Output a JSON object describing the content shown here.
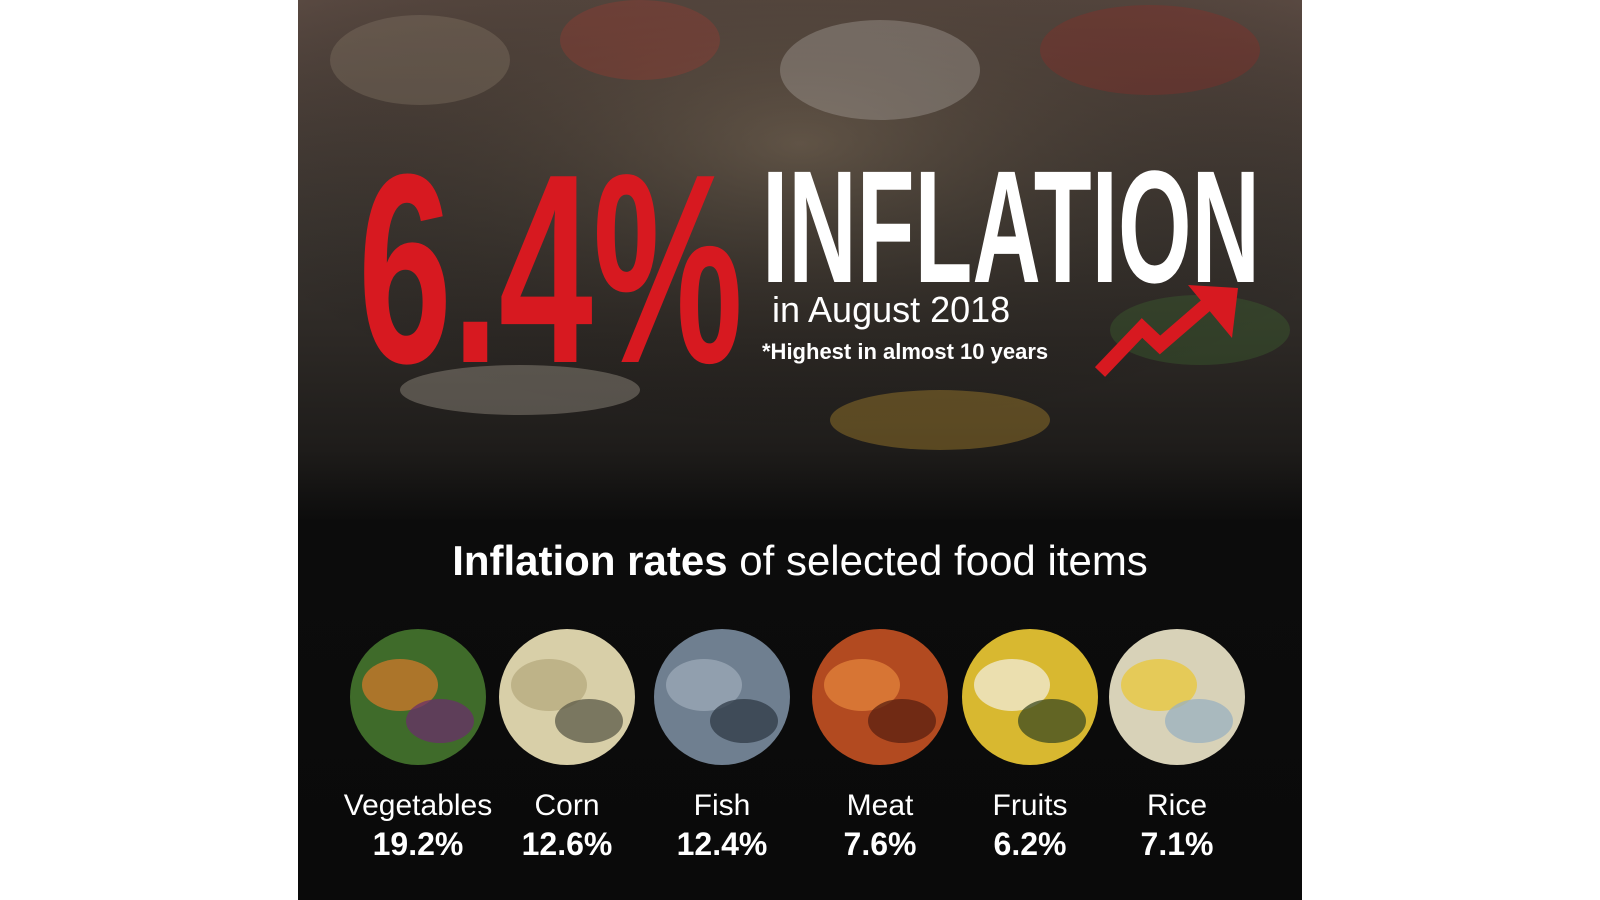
{
  "header": {
    "rate": "6.4%",
    "title": "INFLATION",
    "period": "in August 2018",
    "note": "*Highest in almost 10 years"
  },
  "section": {
    "title_bold": "Inflation rates",
    "title_rest": " of selected food items"
  },
  "items": [
    {
      "name": "Vegetables",
      "rate": "19.2%"
    },
    {
      "name": "Corn",
      "rate": "12.6%"
    },
    {
      "name": "Fish",
      "rate": "12.4%"
    },
    {
      "name": "Meat",
      "rate": "7.6%"
    },
    {
      "name": "Fruits",
      "rate": "6.2%"
    },
    {
      "name": "Rice",
      "rate": "7.1%"
    }
  ]
}
